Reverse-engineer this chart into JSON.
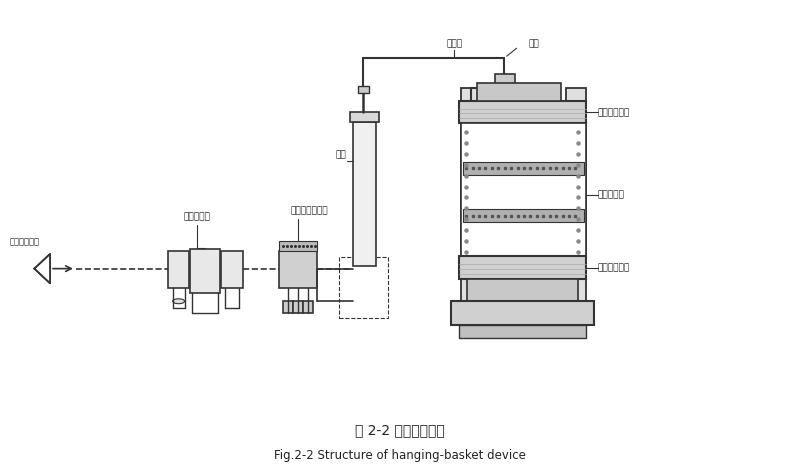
{
  "title_cn": "图 2-2 吊篮冲击装置",
  "title_en": "Fig.2-2 Structure of hanging-basket device",
  "bg_color": "#ffffff",
  "line_color": "#333333",
  "label_color": "#222222",
  "labels": {
    "compressed_air": "压缩空气进入",
    "air_filter": "气源三联件",
    "solenoid_valve": "三位五通电磁阀",
    "cylinder": "气缸",
    "steel_rope": "钢丝绳",
    "pulley": "滚轮",
    "top_seal": "顶部密封装置",
    "sample_basket": "样品筐组件",
    "bottom_seal": "底部密封装置"
  }
}
